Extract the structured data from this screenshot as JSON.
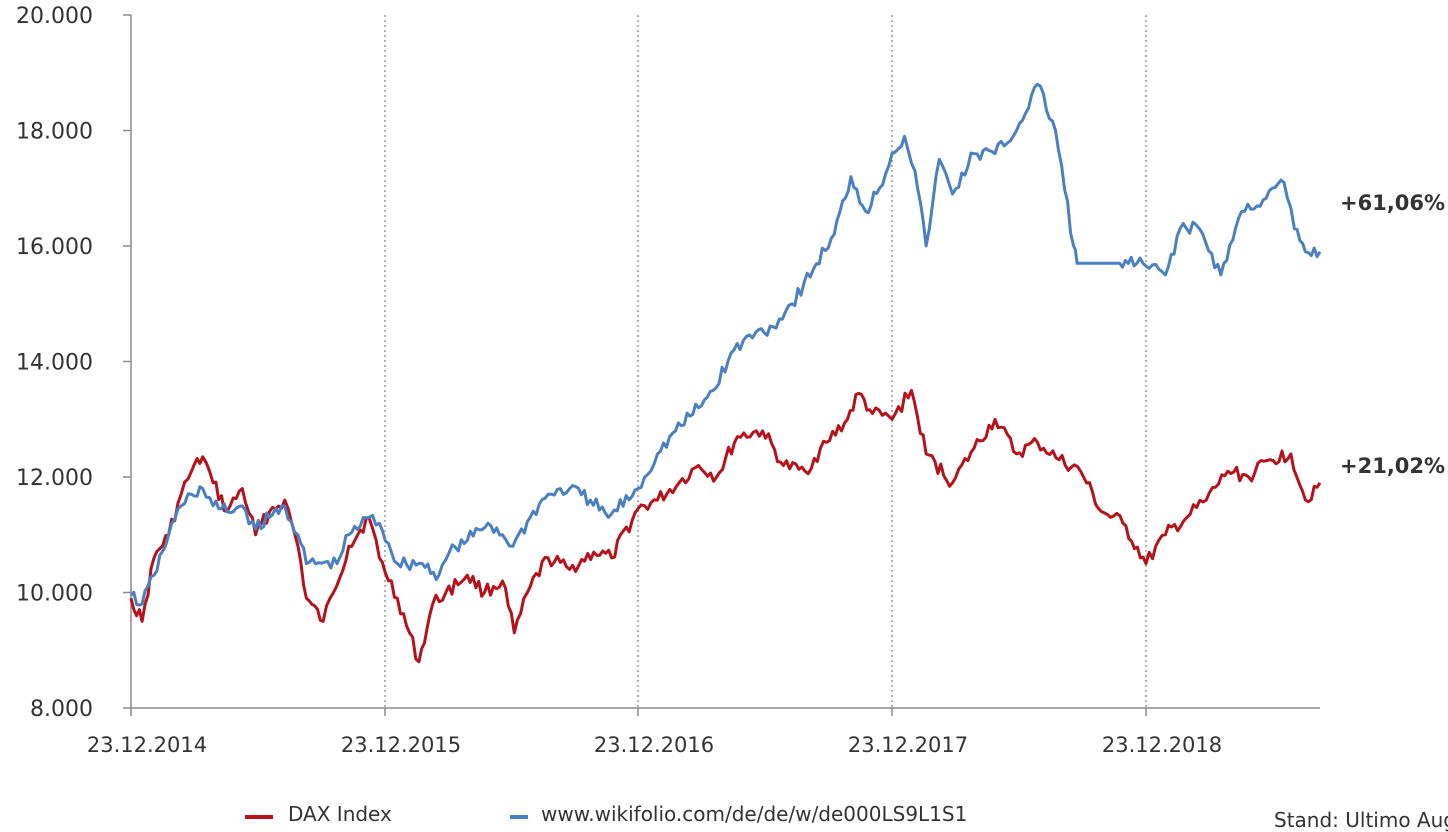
{
  "chart_data": {
    "type": "line",
    "title": "",
    "xlabel": "",
    "ylabel": "",
    "ylim": [
      8000,
      20000
    ],
    "yticks": [
      "8.000",
      "10.000",
      "12.000",
      "14.000",
      "16.000",
      "18.000",
      "20.000"
    ],
    "ytick_values": [
      8000,
      10000,
      12000,
      14000,
      16000,
      18000,
      20000
    ],
    "xlim": [
      "2014-12-23",
      "2019-08-31"
    ],
    "xticks": [
      "23.12.2014",
      "23.12.2015",
      "23.12.2016",
      "23.12.2017",
      "23.12.2018"
    ],
    "xtick_dates": [
      "2014-12-23",
      "2015-12-23",
      "2016-12-23",
      "2017-12-23",
      "2018-12-23"
    ],
    "vertical_gridlines": "dotted at x ticks",
    "legend_position": "bottom",
    "series": [
      {
        "name": "DAX Index",
        "color": "#b5121b",
        "end_label": "+21,02%",
        "points": [
          [
            "2014-12-23",
            9900
          ],
          [
            "2015-01-08",
            9500
          ],
          [
            "2015-01-25",
            10600
          ],
          [
            "2015-02-15",
            11000
          ],
          [
            "2015-03-05",
            11700
          ],
          [
            "2015-03-20",
            12100
          ],
          [
            "2015-04-05",
            12350
          ],
          [
            "2015-04-20",
            11900
          ],
          [
            "2015-05-10",
            11400
          ],
          [
            "2015-06-01",
            11800
          ],
          [
            "2015-06-20",
            11000
          ],
          [
            "2015-07-10",
            11400
          ],
          [
            "2015-08-01",
            11600
          ],
          [
            "2015-08-20",
            10800
          ],
          [
            "2015-09-01",
            9900
          ],
          [
            "2015-09-25",
            9500
          ],
          [
            "2015-10-10",
            10000
          ],
          [
            "2015-11-01",
            10800
          ],
          [
            "2015-11-30",
            11300
          ],
          [
            "2015-12-15",
            10600
          ],
          [
            "2016-01-10",
            9900
          ],
          [
            "2016-02-10",
            8800
          ],
          [
            "2016-03-01",
            9800
          ],
          [
            "2016-03-20",
            10000
          ],
          [
            "2016-04-20",
            10300
          ],
          [
            "2016-05-15",
            10000
          ],
          [
            "2016-06-10",
            10200
          ],
          [
            "2016-06-27",
            9300
          ],
          [
            "2016-07-20",
            10100
          ],
          [
            "2016-08-15",
            10600
          ],
          [
            "2016-09-15",
            10400
          ],
          [
            "2016-10-20",
            10700
          ],
          [
            "2016-11-15",
            10600
          ],
          [
            "2016-12-23",
            11450
          ],
          [
            "2017-01-20",
            11600
          ],
          [
            "2017-02-20",
            11900
          ],
          [
            "2017-03-20",
            12200
          ],
          [
            "2017-04-15",
            12000
          ],
          [
            "2017-05-15",
            12700
          ],
          [
            "2017-06-20",
            12800
          ],
          [
            "2017-07-20",
            12200
          ],
          [
            "2017-08-20",
            12100
          ],
          [
            "2017-09-20",
            12600
          ],
          [
            "2017-10-20",
            13000
          ],
          [
            "2017-11-05",
            13450
          ],
          [
            "2017-11-25",
            13100
          ],
          [
            "2017-12-23",
            13000
          ],
          [
            "2018-01-20",
            13500
          ],
          [
            "2018-02-10",
            12400
          ],
          [
            "2018-03-20",
            11900
          ],
          [
            "2018-04-20",
            12500
          ],
          [
            "2018-05-20",
            13000
          ],
          [
            "2018-06-20",
            12400
          ],
          [
            "2018-07-20",
            12600
          ],
          [
            "2018-08-20",
            12300
          ],
          [
            "2018-09-20",
            12100
          ],
          [
            "2018-10-20",
            11400
          ],
          [
            "2018-11-20",
            11200
          ],
          [
            "2018-12-23",
            10500
          ],
          [
            "2019-01-20",
            11000
          ],
          [
            "2019-02-20",
            11300
          ],
          [
            "2019-03-20",
            11600
          ],
          [
            "2019-04-20",
            12100
          ],
          [
            "2019-05-20",
            12000
          ],
          [
            "2019-06-20",
            12300
          ],
          [
            "2019-07-20",
            12400
          ],
          [
            "2019-08-10",
            11600
          ],
          [
            "2019-08-31",
            11900
          ]
        ]
      },
      {
        "name": "www.wikifolio.com/de/de/w/de000LS9L1S1",
        "color": "#4a7fc1",
        "end_label": "+61,06%",
        "points": [
          [
            "2014-12-23",
            9950
          ],
          [
            "2015-01-08",
            9800
          ],
          [
            "2015-01-25",
            10300
          ],
          [
            "2015-02-15",
            11000
          ],
          [
            "2015-03-05",
            11500
          ],
          [
            "2015-03-20",
            11700
          ],
          [
            "2015-04-05",
            11800
          ],
          [
            "2015-04-20",
            11500
          ],
          [
            "2015-05-10",
            11400
          ],
          [
            "2015-06-01",
            11500
          ],
          [
            "2015-06-20",
            11100
          ],
          [
            "2015-07-10",
            11300
          ],
          [
            "2015-08-01",
            11500
          ],
          [
            "2015-08-20",
            11000
          ],
          [
            "2015-09-01",
            10500
          ],
          [
            "2015-10-15",
            10500
          ],
          [
            "2015-11-01",
            11000
          ],
          [
            "2015-11-30",
            11300
          ],
          [
            "2015-12-15",
            11200
          ],
          [
            "2016-01-10",
            10500
          ],
          [
            "2016-02-15",
            10500
          ],
          [
            "2016-03-10",
            10300
          ],
          [
            "2016-03-25",
            10700
          ],
          [
            "2016-04-20",
            10900
          ],
          [
            "2016-05-20",
            11200
          ],
          [
            "2016-06-10",
            11000
          ],
          [
            "2016-06-25",
            10800
          ],
          [
            "2016-07-20",
            11300
          ],
          [
            "2016-08-15",
            11700
          ],
          [
            "2016-09-15",
            11800
          ],
          [
            "2016-10-15",
            11600
          ],
          [
            "2016-11-10",
            11300
          ],
          [
            "2016-12-23",
            11800
          ],
          [
            "2017-01-20",
            12400
          ],
          [
            "2017-02-15",
            12800
          ],
          [
            "2017-03-20",
            13200
          ],
          [
            "2017-04-10",
            13500
          ],
          [
            "2017-05-10",
            14200
          ],
          [
            "2017-06-10",
            14500
          ],
          [
            "2017-07-05",
            14600
          ],
          [
            "2017-08-01",
            15000
          ],
          [
            "2017-09-01",
            15600
          ],
          [
            "2017-10-01",
            16200
          ],
          [
            "2017-10-25",
            17200
          ],
          [
            "2017-11-15",
            16600
          ],
          [
            "2017-12-05",
            17000
          ],
          [
            "2017-12-23",
            17600
          ],
          [
            "2018-01-10",
            17900
          ],
          [
            "2018-01-25",
            17300
          ],
          [
            "2018-02-10",
            16000
          ],
          [
            "2018-03-01",
            17500
          ],
          [
            "2018-03-20",
            16900
          ],
          [
            "2018-04-20",
            17600
          ],
          [
            "2018-05-20",
            17600
          ],
          [
            "2018-06-20",
            18000
          ],
          [
            "2018-07-20",
            18800
          ],
          [
            "2018-08-15",
            18000
          ],
          [
            "2018-09-10",
            16000
          ],
          [
            "2018-09-15",
            15700
          ],
          [
            "2018-11-15",
            15700
          ],
          [
            "2018-12-10",
            15700
          ],
          [
            "2018-12-23",
            15650
          ],
          [
            "2019-01-20",
            15500
          ],
          [
            "2019-02-10",
            16300
          ],
          [
            "2019-03-10",
            16300
          ],
          [
            "2019-04-10",
            15500
          ],
          [
            "2019-05-10",
            16600
          ],
          [
            "2019-06-10",
            16800
          ],
          [
            "2019-07-10",
            17100
          ],
          [
            "2019-07-25",
            16300
          ],
          [
            "2019-08-10",
            15900
          ],
          [
            "2019-08-31",
            15900
          ]
        ]
      }
    ]
  },
  "footer": {
    "stand": "Stand: Ultimo Aug"
  }
}
